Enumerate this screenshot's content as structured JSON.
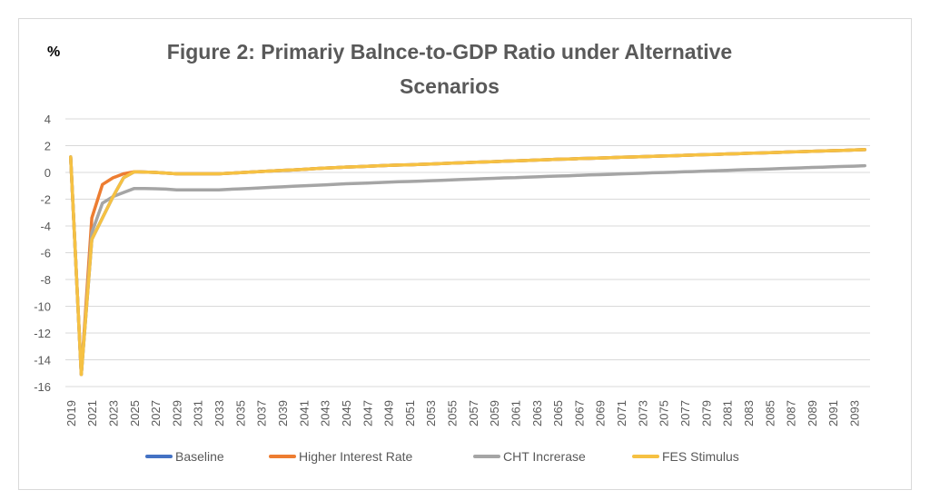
{
  "chart_data": {
    "type": "line",
    "title": "Figure 2: Primariy Balnce-to-GDP Ratio under Alternative Scenarios",
    "title_lines": [
      "Figure 2: Primariy Balnce-to-GDP Ratio under Alternative",
      "Scenarios"
    ],
    "ylabel": "%",
    "xlabel": "",
    "ylim": [
      -16,
      4
    ],
    "yticks": [
      4,
      2,
      0,
      -2,
      -4,
      -6,
      -8,
      -10,
      -12,
      -14,
      -16
    ],
    "ytick_labels": [
      "4",
      "2",
      "0",
      "-2",
      "-4",
      "-6",
      "-8",
      "-10",
      "-12",
      "-14",
      "-16"
    ],
    "grid": "horizontal",
    "legend_position": "bottom",
    "x": [
      2019,
      2020,
      2021,
      2022,
      2023,
      2024,
      2025,
      2026,
      2027,
      2028,
      2029,
      2030,
      2031,
      2032,
      2033,
      2034,
      2035,
      2036,
      2037,
      2038,
      2039,
      2040,
      2041,
      2042,
      2043,
      2044,
      2045,
      2046,
      2047,
      2048,
      2049,
      2050,
      2051,
      2052,
      2053,
      2054,
      2055,
      2056,
      2057,
      2058,
      2059,
      2060,
      2061,
      2062,
      2063,
      2064,
      2065,
      2066,
      2067,
      2068,
      2069,
      2070,
      2071,
      2072,
      2073,
      2074,
      2075,
      2076,
      2077,
      2078,
      2079,
      2080,
      2081,
      2082,
      2083,
      2084,
      2085,
      2086,
      2087,
      2088,
      2089,
      2090,
      2091,
      2092,
      2093,
      2094
    ],
    "xtick_labels": [
      "2019",
      "2021",
      "2023",
      "2025",
      "2027",
      "2029",
      "2031",
      "2033",
      "2035",
      "2037",
      "2039",
      "2041",
      "2043",
      "2045",
      "2047",
      "2049",
      "2051",
      "2053",
      "2055",
      "2057",
      "2059",
      "2061",
      "2063",
      "2065",
      "2067",
      "2069",
      "2071",
      "2073",
      "2075",
      "2077",
      "2079",
      "2081",
      "2083",
      "2085",
      "2087",
      "2089",
      "2091",
      "2093"
    ],
    "series": [
      {
        "name": "Baseline",
        "color": "#4472c4",
        "values": [
          1.15,
          -15.1,
          -5.0,
          -3.4,
          -1.8,
          -0.4,
          0.05,
          0.03,
          0.0,
          -0.05,
          -0.1,
          -0.1,
          -0.1,
          -0.1,
          -0.1,
          -0.06,
          -0.02,
          0.03,
          0.07,
          0.11,
          0.15,
          0.19,
          0.23,
          0.28,
          0.32,
          0.36,
          0.4,
          0.43,
          0.46,
          0.49,
          0.52,
          0.55,
          0.57,
          0.6,
          0.63,
          0.66,
          0.69,
          0.72,
          0.75,
          0.78,
          0.81,
          0.84,
          0.86,
          0.89,
          0.92,
          0.95,
          0.98,
          1.0,
          1.03,
          1.05,
          1.08,
          1.1,
          1.13,
          1.15,
          1.18,
          1.2,
          1.23,
          1.25,
          1.28,
          1.3,
          1.33,
          1.35,
          1.38,
          1.4,
          1.43,
          1.45,
          1.48,
          1.5,
          1.53,
          1.55,
          1.58,
          1.6,
          1.63,
          1.65,
          1.68,
          1.7
        ]
      },
      {
        "name": "Higher Interest Rate",
        "color": "#ed7d31",
        "values": [
          1.15,
          -15.1,
          -3.4,
          -0.9,
          -0.4,
          -0.1,
          0.05,
          0.03,
          0.0,
          -0.05,
          -0.1,
          -0.1,
          -0.1,
          -0.1,
          -0.1,
          -0.06,
          -0.02,
          0.03,
          0.07,
          0.11,
          0.15,
          0.19,
          0.23,
          0.28,
          0.32,
          0.36,
          0.4,
          0.43,
          0.46,
          0.49,
          0.52,
          0.55,
          0.57,
          0.6,
          0.63,
          0.66,
          0.69,
          0.72,
          0.75,
          0.78,
          0.81,
          0.84,
          0.86,
          0.89,
          0.92,
          0.95,
          0.98,
          1.0,
          1.03,
          1.05,
          1.08,
          1.1,
          1.13,
          1.15,
          1.18,
          1.2,
          1.23,
          1.25,
          1.28,
          1.3,
          1.33,
          1.35,
          1.38,
          1.4,
          1.43,
          1.45,
          1.48,
          1.5,
          1.53,
          1.55,
          1.58,
          1.6,
          1.63,
          1.65,
          1.68,
          1.7
        ]
      },
      {
        "name": "CHT Increrase",
        "color": "#a5a5a5",
        "values": [
          1.15,
          -15.1,
          -4.5,
          -2.3,
          -1.8,
          -1.5,
          -1.2,
          -1.2,
          -1.22,
          -1.25,
          -1.3,
          -1.3,
          -1.3,
          -1.3,
          -1.3,
          -1.26,
          -1.23,
          -1.19,
          -1.15,
          -1.11,
          -1.08,
          -1.04,
          -1.0,
          -0.96,
          -0.93,
          -0.89,
          -0.85,
          -0.82,
          -0.79,
          -0.76,
          -0.73,
          -0.7,
          -0.68,
          -0.65,
          -0.62,
          -0.59,
          -0.56,
          -0.53,
          -0.5,
          -0.47,
          -0.44,
          -0.41,
          -0.39,
          -0.36,
          -0.33,
          -0.3,
          -0.27,
          -0.25,
          -0.22,
          -0.19,
          -0.17,
          -0.14,
          -0.11,
          -0.09,
          -0.06,
          -0.03,
          -0.01,
          0.02,
          0.05,
          0.07,
          0.1,
          0.13,
          0.15,
          0.18,
          0.21,
          0.23,
          0.26,
          0.29,
          0.31,
          0.34,
          0.37,
          0.39,
          0.42,
          0.45,
          0.47,
          0.5
        ]
      },
      {
        "name": "FES Stimulus",
        "color": "#f6c142",
        "values": [
          1.15,
          -15.1,
          -5.0,
          -3.4,
          -1.8,
          -0.4,
          0.05,
          0.03,
          0.0,
          -0.05,
          -0.1,
          -0.1,
          -0.1,
          -0.1,
          -0.1,
          -0.06,
          -0.02,
          0.03,
          0.07,
          0.11,
          0.15,
          0.19,
          0.23,
          0.28,
          0.32,
          0.36,
          0.4,
          0.43,
          0.46,
          0.49,
          0.52,
          0.55,
          0.57,
          0.6,
          0.63,
          0.66,
          0.69,
          0.72,
          0.75,
          0.78,
          0.81,
          0.84,
          0.86,
          0.89,
          0.92,
          0.95,
          0.98,
          1.0,
          1.03,
          1.05,
          1.08,
          1.1,
          1.13,
          1.15,
          1.18,
          1.2,
          1.23,
          1.25,
          1.28,
          1.3,
          1.33,
          1.35,
          1.38,
          1.4,
          1.43,
          1.45,
          1.48,
          1.5,
          1.53,
          1.55,
          1.58,
          1.6,
          1.63,
          1.65,
          1.68,
          1.7
        ]
      }
    ]
  }
}
